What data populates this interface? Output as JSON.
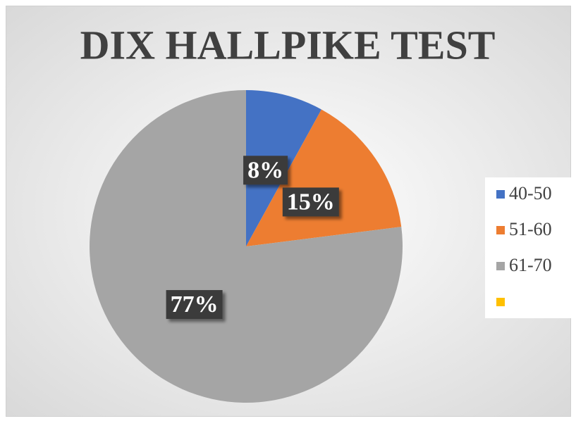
{
  "chart_data": {
    "type": "pie",
    "title": "DIX HALLPIKE TEST",
    "categories": [
      "40-50",
      "51-60",
      "61-70",
      null
    ],
    "values": [
      8,
      15,
      77,
      0
    ],
    "value_labels": [
      "8%",
      "15%",
      "77%",
      null
    ],
    "colors": [
      "#4472c4",
      "#ed7d31",
      "#a5a5a5",
      "#ffc000"
    ],
    "legend": "right"
  }
}
